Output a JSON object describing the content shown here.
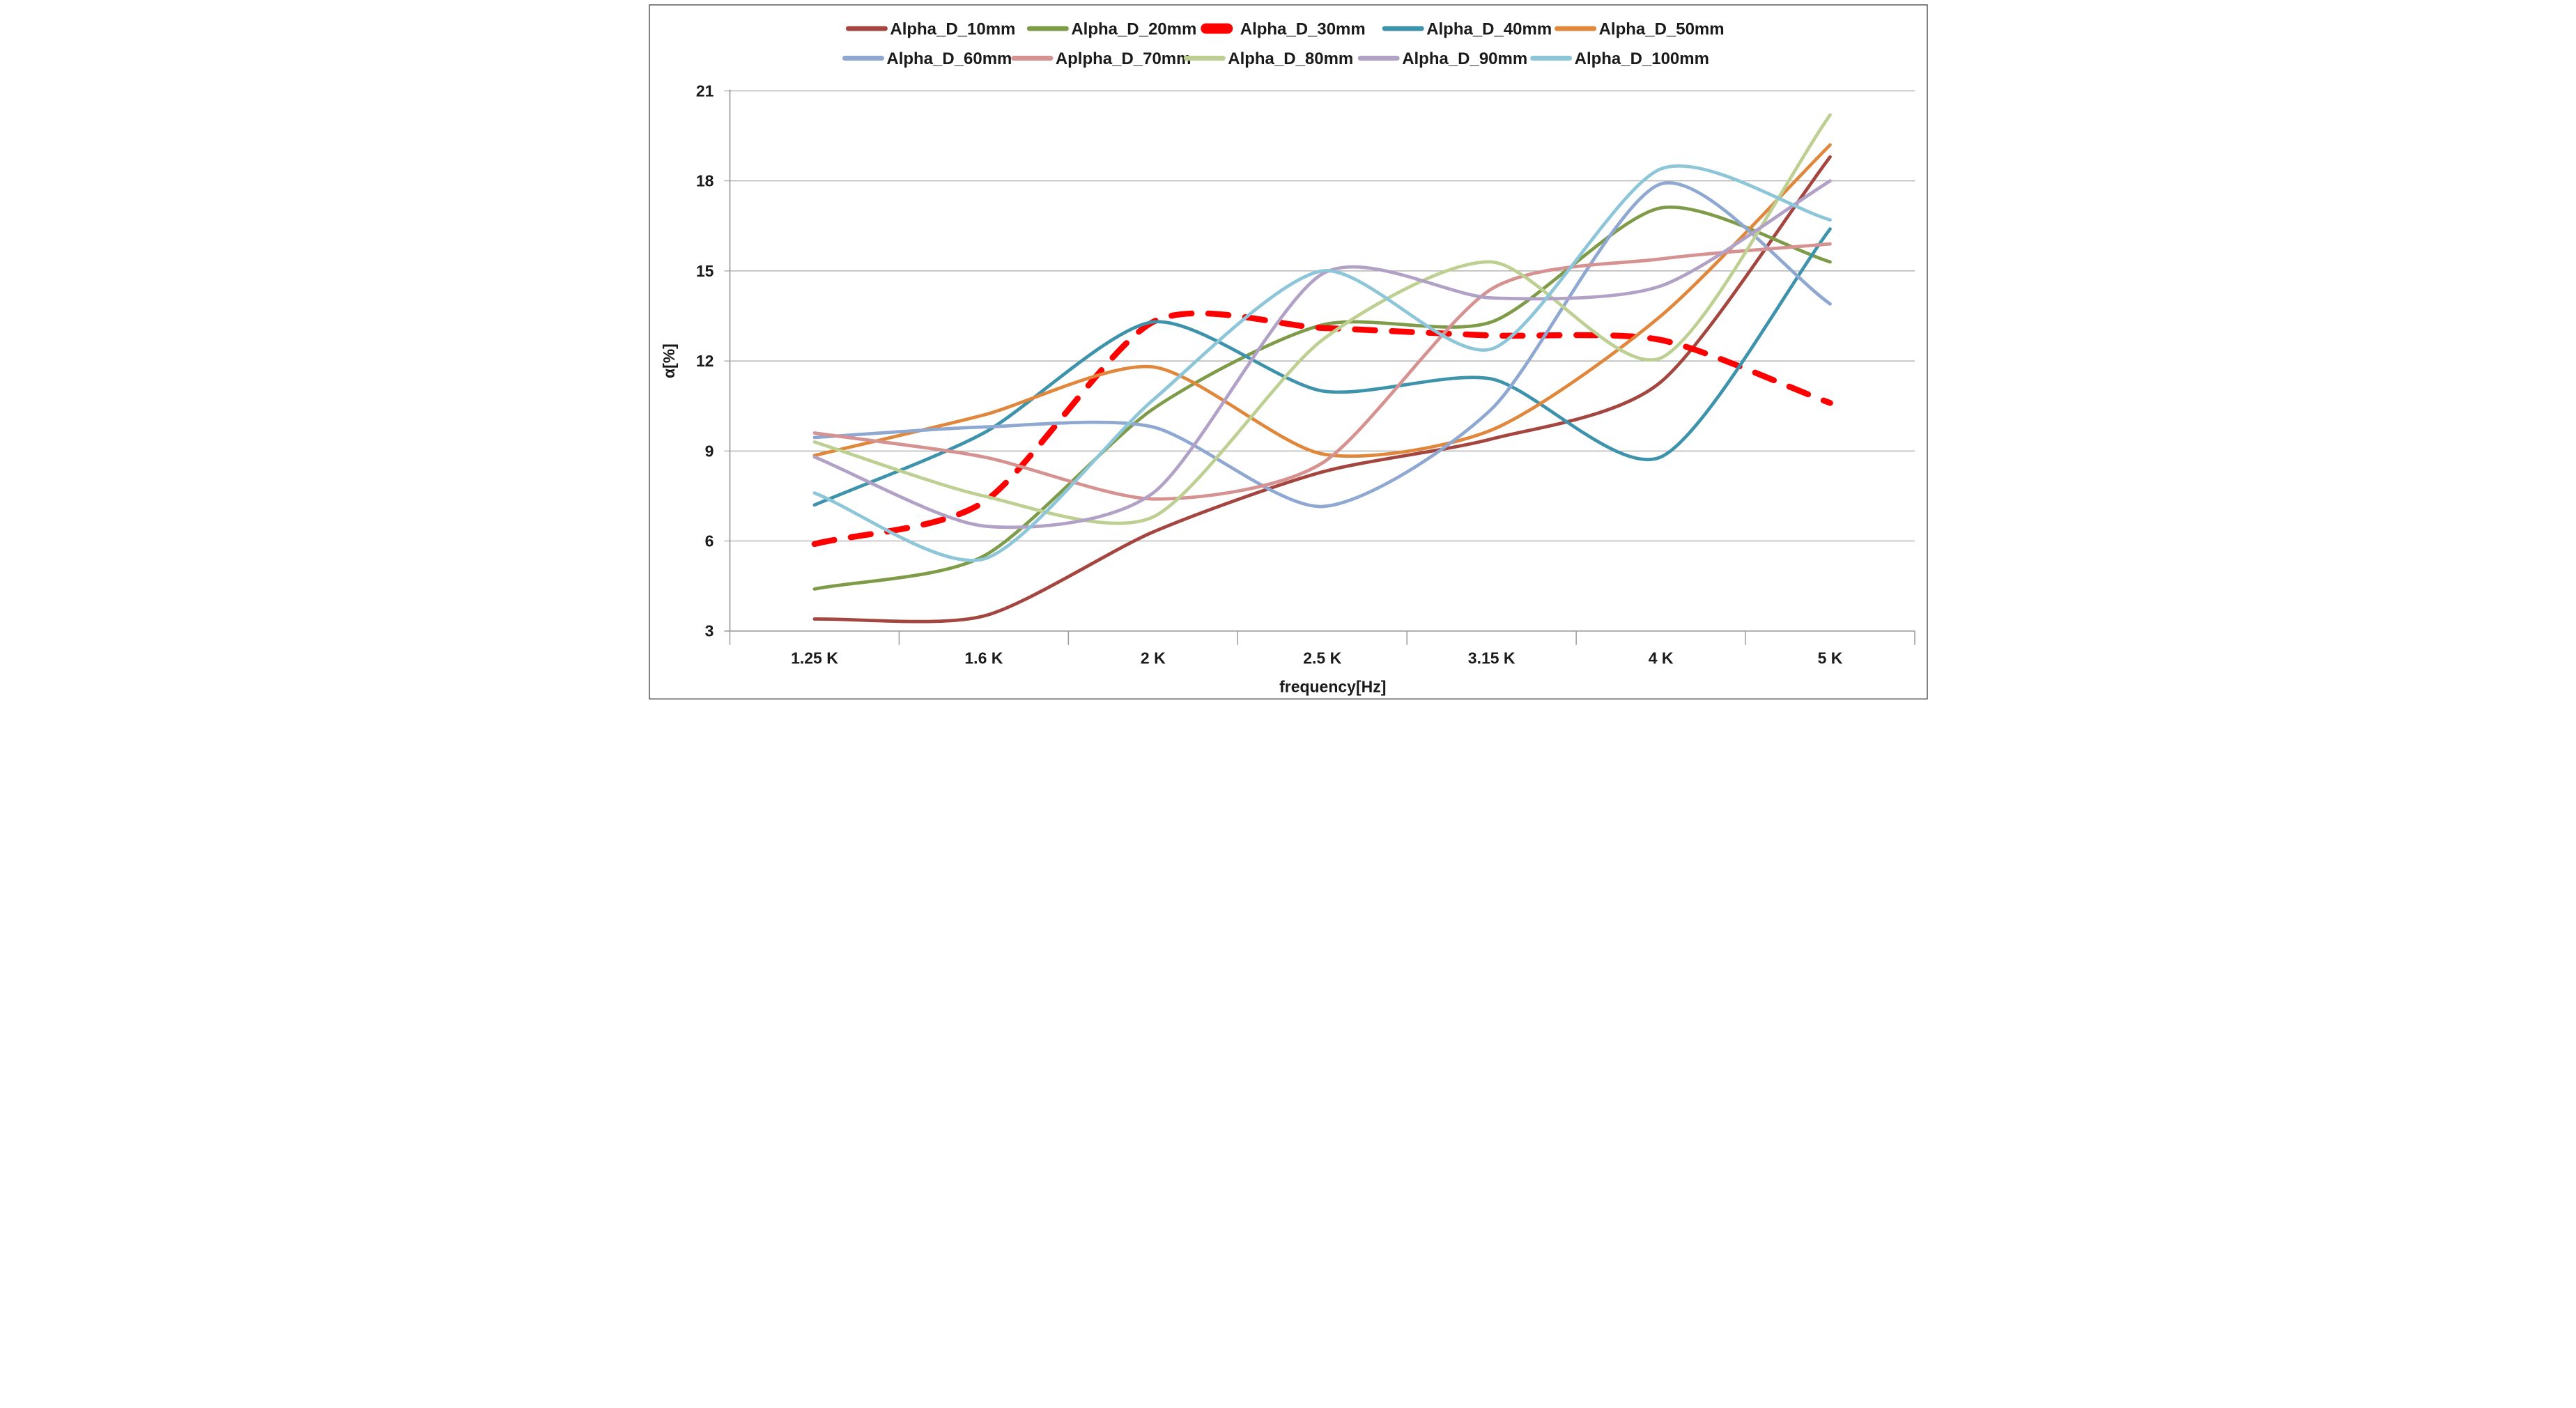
{
  "chart_data": {
    "type": "line",
    "title": "",
    "xlabel": "frequency[Hz]",
    "ylabel": "α[%]",
    "ylim": [
      3,
      21
    ],
    "yticks": [
      3,
      6,
      9,
      12,
      15,
      18,
      21
    ],
    "ytick_labels": [
      "3",
      "6",
      "9",
      "12",
      "15",
      "18",
      "21"
    ],
    "categories": [
      "1.25 K",
      "1.6 K",
      "2 K",
      "2.5 K",
      "3.15 K",
      "4 K",
      "5 K"
    ],
    "grid": true,
    "legend_position": "top",
    "line_style_note": "all series smoothed; Alpha_D_30mm is a thick red dashed line",
    "series": [
      {
        "name": "Alpha_D_10mm",
        "color": "#A5453F",
        "dashed": false,
        "values": [
          3.4,
          3.5,
          6.3,
          8.3,
          9.4,
          11.3,
          18.8
        ]
      },
      {
        "name": "Alpha_D_20mm",
        "color": "#7E9B48",
        "dashed": false,
        "values": [
          4.4,
          5.5,
          10.4,
          13.2,
          13.3,
          17.1,
          15.3
        ]
      },
      {
        "name": "Alpha_D_30mm",
        "color": "#FE0000",
        "dashed": true,
        "values": [
          5.9,
          7.3,
          13.3,
          13.1,
          12.85,
          12.7,
          10.6
        ]
      },
      {
        "name": "Alpha_D_40mm",
        "color": "#3D93AC",
        "dashed": false,
        "values": [
          7.2,
          9.6,
          13.3,
          11.0,
          11.4,
          8.8,
          16.4
        ]
      },
      {
        "name": "Alpha_D_50mm",
        "color": "#E0873B",
        "dashed": false,
        "values": [
          8.85,
          10.2,
          11.8,
          8.9,
          9.7,
          13.5,
          19.2
        ]
      },
      {
        "name": "Alpha_D_60mm",
        "color": "#8EA8D2",
        "dashed": false,
        "values": [
          9.45,
          9.8,
          9.8,
          7.15,
          10.4,
          17.9,
          13.9
        ]
      },
      {
        "name": "Aplpha_D_70mm",
        "color": "#D59290",
        "dashed": false,
        "values": [
          9.6,
          8.8,
          7.4,
          8.6,
          14.4,
          15.4,
          15.9
        ]
      },
      {
        "name": "Alpha_D_80mm",
        "color": "#BDD092",
        "dashed": false,
        "values": [
          9.3,
          7.5,
          6.8,
          12.7,
          15.3,
          12.1,
          20.2
        ]
      },
      {
        "name": "Alpha_D_90mm",
        "color": "#B2A1C7",
        "dashed": false,
        "values": [
          8.8,
          6.5,
          7.6,
          14.9,
          14.1,
          14.5,
          18.0
        ]
      },
      {
        "name": "Alpha_D_100mm",
        "color": "#8CC6D8",
        "dashed": false,
        "values": [
          7.6,
          5.4,
          10.7,
          15.0,
          12.4,
          18.4,
          16.7
        ]
      }
    ]
  },
  "colors": {
    "background": "#FFFFFF",
    "outer_border": "#595959",
    "grid": "#A6A6A6",
    "axis": "#9B9B9B",
    "tick_text": "#1A1A1A",
    "legend_text": "#000000"
  }
}
